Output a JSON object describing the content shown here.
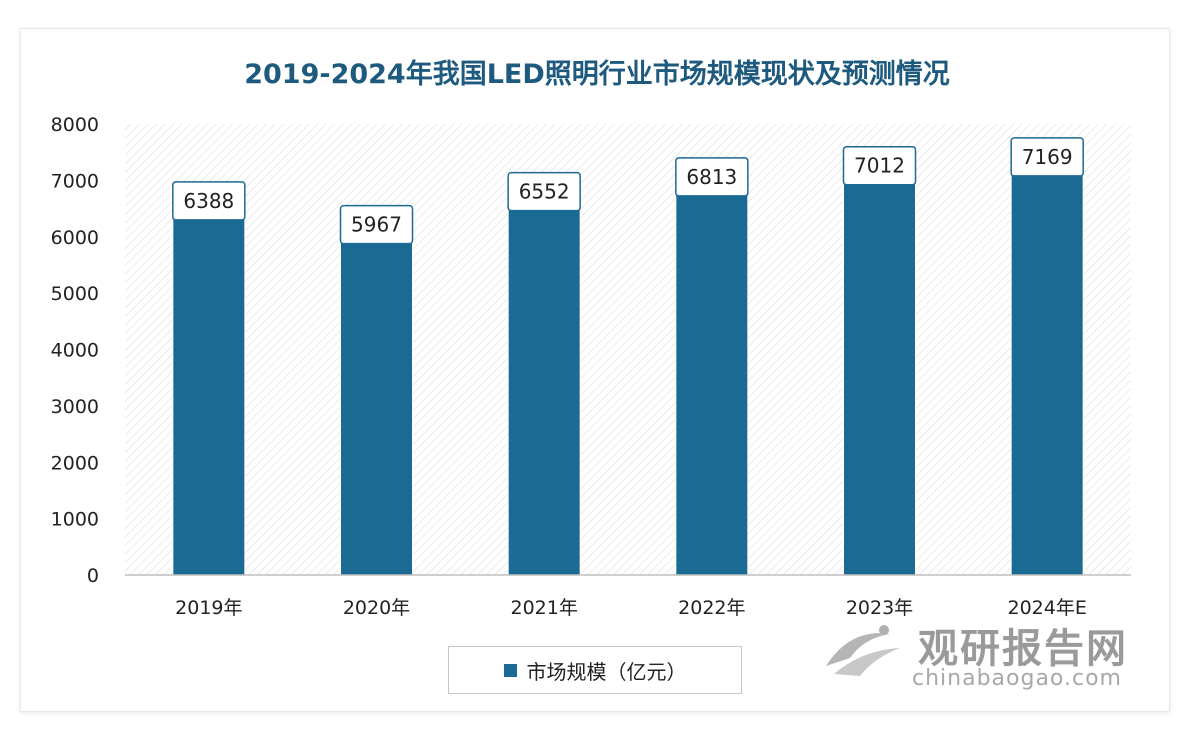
{
  "chart_data": {
    "type": "bar",
    "title": "2019-2024年我国LED照明行业市场规模现状及预测情况",
    "categories": [
      "2019年",
      "2020年",
      "2021年",
      "2022年",
      "2023年",
      "2024年E"
    ],
    "series": [
      {
        "name": "市场规模（亿元）",
        "values": [
          6388,
          5967,
          6552,
          6813,
          7012,
          7169
        ]
      }
    ],
    "ylim": [
      0,
      8000
    ],
    "yticks": [
      0,
      1000,
      2000,
      3000,
      4000,
      5000,
      6000,
      7000,
      8000
    ],
    "xlabel": "",
    "ylabel": "",
    "legend_position": "bottom",
    "bar_color": "#1a6a94"
  },
  "watermark": {
    "name": "观研报告网",
    "url": "chinabaogao.com"
  }
}
